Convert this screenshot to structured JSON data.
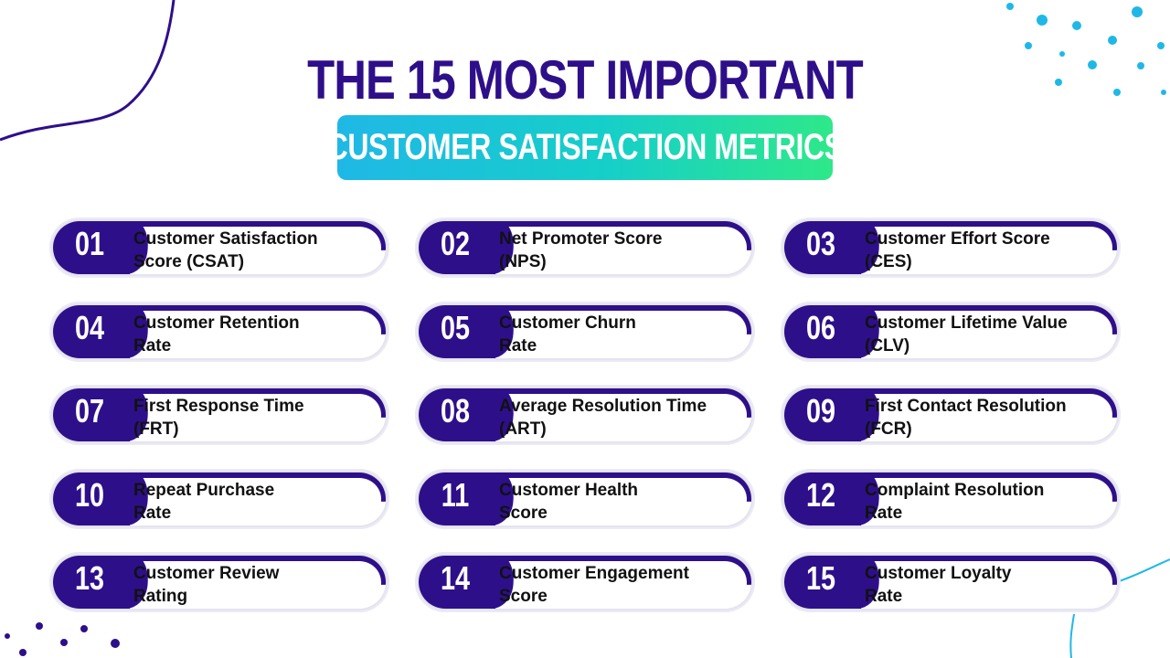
{
  "title": "THE 15 MOST IMPORTANT",
  "subtitle": "CUSTOMER SATISFACTION METRICS",
  "colors": {
    "primary": "#2e0f8a",
    "gradient_start": "#1fb8e6",
    "gradient_end": "#2ee88a",
    "dots": "#1fb8e6",
    "card_border": "#e4e3ef"
  },
  "metrics": [
    {
      "num": "01",
      "line1": "Customer Satisfaction",
      "line2": "Score (CSAT)"
    },
    {
      "num": "02",
      "line1": "Net Promoter Score",
      "line2": "(NPS)"
    },
    {
      "num": "03",
      "line1": "Customer Effort Score",
      "line2": "(CES)"
    },
    {
      "num": "04",
      "line1": "Customer Retention",
      "line2": "Rate"
    },
    {
      "num": "05",
      "line1": "Customer Churn",
      "line2": "Rate"
    },
    {
      "num": "06",
      "line1": "Customer Lifetime Value",
      "line2": "(CLV)"
    },
    {
      "num": "07",
      "line1": "First Response Time",
      "line2": "(FRT)"
    },
    {
      "num": "08",
      "line1": "Average Resolution Time",
      "line2": "(ART)"
    },
    {
      "num": "09",
      "line1": "First Contact Resolution",
      "line2": "(FCR)"
    },
    {
      "num": "10",
      "line1": "Repeat Purchase",
      "line2": "Rate"
    },
    {
      "num": "11",
      "line1": "Customer Health",
      "line2": "Score"
    },
    {
      "num": "12",
      "line1": "Complaint Resolution",
      "line2": "Rate"
    },
    {
      "num": "13",
      "line1": "Customer Review",
      "line2": "Rating"
    },
    {
      "num": "14",
      "line1": "Customer Engagement",
      "line2": "Score"
    },
    {
      "num": "15",
      "line1": "Customer Loyalty",
      "line2": "Rate"
    }
  ]
}
